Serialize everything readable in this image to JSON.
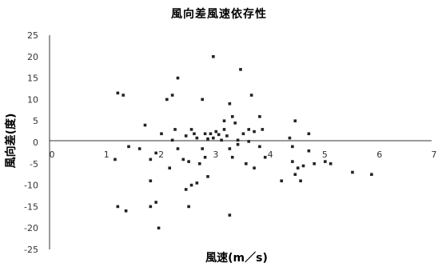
{
  "chart_data": {
    "type": "scatter",
    "title": "風向差風速依存性",
    "xlabel": "風速(m／s)",
    "ylabel": "風向差(度)",
    "xlim": [
      0,
      7
    ],
    "ylim": [
      -25,
      25
    ],
    "x_ticks": [
      "0",
      "1",
      "2",
      "3",
      "4",
      "5",
      "6",
      "7"
    ],
    "y_ticks": [
      "25",
      "20",
      "15",
      "10",
      "5",
      "0",
      "-5",
      "-10",
      "-15",
      "-20",
      "-25"
    ],
    "grid": false,
    "legend": "none",
    "series": [
      {
        "points": [
          [
            1.25,
            11.5
          ],
          [
            1.35,
            11
          ],
          [
            1.75,
            4
          ],
          [
            2.15,
            10
          ],
          [
            2.25,
            11
          ],
          [
            2.35,
            15
          ],
          [
            2.3,
            3
          ],
          [
            2.5,
            1.5
          ],
          [
            2.6,
            3
          ],
          [
            2.8,
            10
          ],
          [
            3.0,
            20
          ],
          [
            3.3,
            9
          ],
          [
            3.5,
            17
          ],
          [
            3.7,
            11
          ],
          [
            3.85,
            6
          ],
          [
            3.2,
            5
          ],
          [
            3.35,
            6
          ],
          [
            3.4,
            4.5
          ],
          [
            3.05,
            2.5
          ],
          [
            3.2,
            3
          ],
          [
            2.65,
            2
          ],
          [
            2.85,
            2
          ],
          [
            2.95,
            2
          ],
          [
            3.1,
            1.8
          ],
          [
            2.7,
            1
          ],
          [
            3.0,
            1
          ],
          [
            3.25,
            1.5
          ],
          [
            3.55,
            2
          ],
          [
            3.65,
            3
          ],
          [
            3.75,
            2.5
          ],
          [
            3.9,
            3
          ],
          [
            4.4,
            1
          ],
          [
            4.5,
            5
          ],
          [
            4.75,
            2
          ],
          [
            2.05,
            2
          ],
          [
            2.25,
            0.5
          ],
          [
            2.9,
            0.8
          ],
          [
            3.15,
            0.5
          ],
          [
            3.45,
            0.5
          ],
          [
            3.65,
            0.2
          ],
          [
            1.45,
            -1
          ],
          [
            1.65,
            -1.5
          ],
          [
            2.35,
            -1.5
          ],
          [
            2.8,
            -1.5
          ],
          [
            3.3,
            -1.5
          ],
          [
            3.45,
            -0.5
          ],
          [
            3.85,
            -1
          ],
          [
            4.45,
            -1
          ],
          [
            4.75,
            -2
          ],
          [
            2.45,
            -4
          ],
          [
            2.55,
            -4.5
          ],
          [
            2.85,
            -3.5
          ],
          [
            3.35,
            -3.5
          ],
          [
            3.6,
            -5
          ],
          [
            3.75,
            -6
          ],
          [
            3.95,
            -3.5
          ],
          [
            4.45,
            -4.5
          ],
          [
            4.55,
            -6
          ],
          [
            4.65,
            -5.5
          ],
          [
            4.85,
            -5
          ],
          [
            5.05,
            -4.5
          ],
          [
            5.15,
            -5
          ],
          [
            5.55,
            -7
          ],
          [
            5.9,
            -7.5
          ],
          [
            1.85,
            -4
          ],
          [
            1.95,
            -2.5
          ],
          [
            2.2,
            -6
          ],
          [
            2.75,
            -5
          ],
          [
            4.25,
            -9
          ],
          [
            4.5,
            -7.5
          ],
          [
            4.6,
            -9
          ],
          [
            1.2,
            -4
          ],
          [
            2.5,
            -11
          ],
          [
            2.6,
            -10
          ],
          [
            2.7,
            -9.5
          ],
          [
            2.9,
            -8
          ],
          [
            1.85,
            -9
          ],
          [
            1.25,
            -15
          ],
          [
            1.4,
            -16
          ],
          [
            1.85,
            -15
          ],
          [
            1.95,
            -14
          ],
          [
            2.55,
            -15
          ],
          [
            3.3,
            -17
          ],
          [
            2.0,
            -20
          ]
        ]
      }
    ]
  }
}
